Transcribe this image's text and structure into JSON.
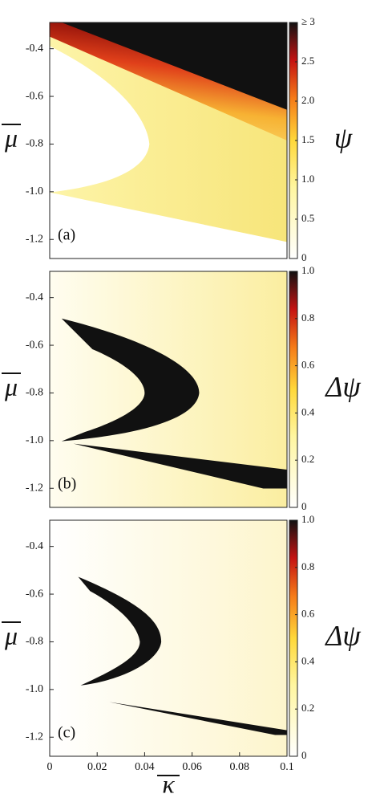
{
  "chart_data": [
    {
      "type": "heatmap",
      "panel_label": "(a)",
      "ylabel": "μ",
      "xlim": [
        0,
        0.1
      ],
      "ylim": [
        -1.28,
        -0.29
      ],
      "yticks": [
        -0.4,
        -0.6,
        -0.8,
        {
          "value": -1.0,
          "label": "-1.0"
        },
        -1.2
      ],
      "colorbar": {
        "label": "ψ",
        "lim": [
          0,
          3
        ],
        "ticks": [
          0,
          0.5,
          {
            "value": 1,
            "label": "1.0"
          },
          1.5,
          {
            "value": 2,
            "label": "2.0"
          },
          2.5,
          {
            "value": 3,
            "label": "≥ 3"
          }
        ]
      }
    },
    {
      "type": "heatmap",
      "panel_label": "(b)",
      "ylabel": "μ",
      "xlim": [
        0,
        0.1
      ],
      "ylim": [
        -1.28,
        -0.29
      ],
      "yticks": [
        -0.4,
        -0.6,
        -0.8,
        {
          "value": -1.0,
          "label": "-1.0"
        },
        -1.2
      ],
      "colorbar": {
        "label": "Δψ",
        "lim": [
          0,
          1
        ],
        "ticks": [
          0,
          0.2,
          0.4,
          0.6,
          0.8,
          {
            "value": 1,
            "label": "1.0"
          }
        ]
      }
    },
    {
      "type": "heatmap",
      "panel_label": "(c)",
      "ylabel": "μ",
      "xlabel": "κ",
      "xlim": [
        0,
        0.1
      ],
      "ylim": [
        -1.28,
        -0.29
      ],
      "xticks": [
        0,
        0.02,
        0.04,
        0.06,
        0.08,
        0.1
      ],
      "yticks": [
        -0.4,
        -0.6,
        -0.8,
        {
          "value": -1.0,
          "label": "-1.0"
        },
        -1.2
      ],
      "colorbar": {
        "label": "Δψ",
        "lim": [
          0,
          1
        ],
        "ticks": [
          0,
          0.2,
          0.4,
          0.6,
          0.8,
          {
            "value": 1,
            "label": "1.0"
          }
        ]
      }
    }
  ]
}
